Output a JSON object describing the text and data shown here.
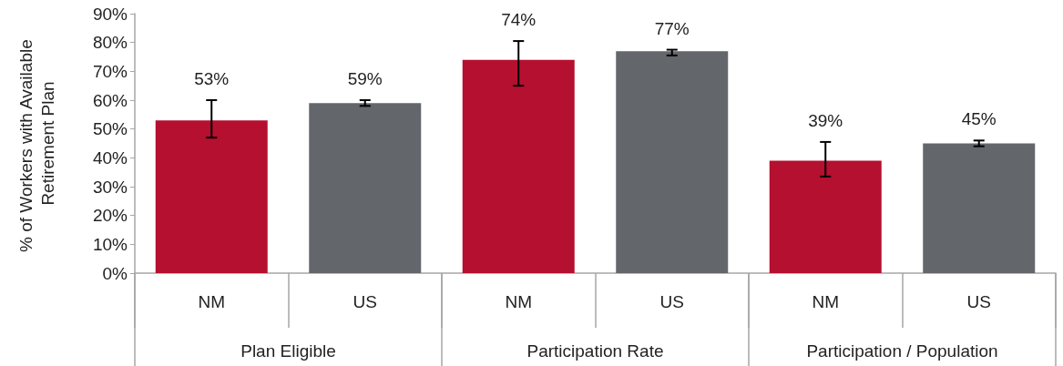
{
  "chart_data": {
    "type": "bar",
    "ylabel": "% of Workers with Available Retirement Plan",
    "categories": [
      "NM",
      "US",
      "NM",
      "US",
      "NM",
      "US"
    ],
    "values": [
      53,
      59,
      74,
      77,
      39,
      45
    ],
    "colors": [
      "#b5102f",
      "#63666a",
      "#b5102f",
      "#63666a",
      "#b5102f",
      "#63666a"
    ],
    "value_labels": [
      "53%",
      "59%",
      "74%",
      "77%",
      "39%",
      "45%"
    ],
    "errors": [
      [
        47,
        60
      ],
      [
        58,
        60
      ],
      [
        65,
        80.5
      ],
      [
        75.5,
        77.5
      ],
      [
        33.5,
        45.5
      ],
      [
        44,
        46
      ]
    ],
    "annotations": [
      "Plan Eligible",
      "Participation Rate",
      "Participation / Population"
    ],
    "ylim": [
      0,
      90
    ],
    "yticks": [
      {
        "value": 0,
        "label": "0%"
      },
      {
        "value": 10,
        "label": "10%"
      },
      {
        "value": 20,
        "label": "20%"
      },
      {
        "value": 30,
        "label": "30%"
      },
      {
        "value": 40,
        "label": "40%"
      },
      {
        "value": 50,
        "label": "50%"
      },
      {
        "value": 60,
        "label": "60%"
      },
      {
        "value": 70,
        "label": "70%"
      },
      {
        "value": 80,
        "label": "80%"
      },
      {
        "value": 90,
        "label": "90%"
      }
    ],
    "grid": false
  }
}
